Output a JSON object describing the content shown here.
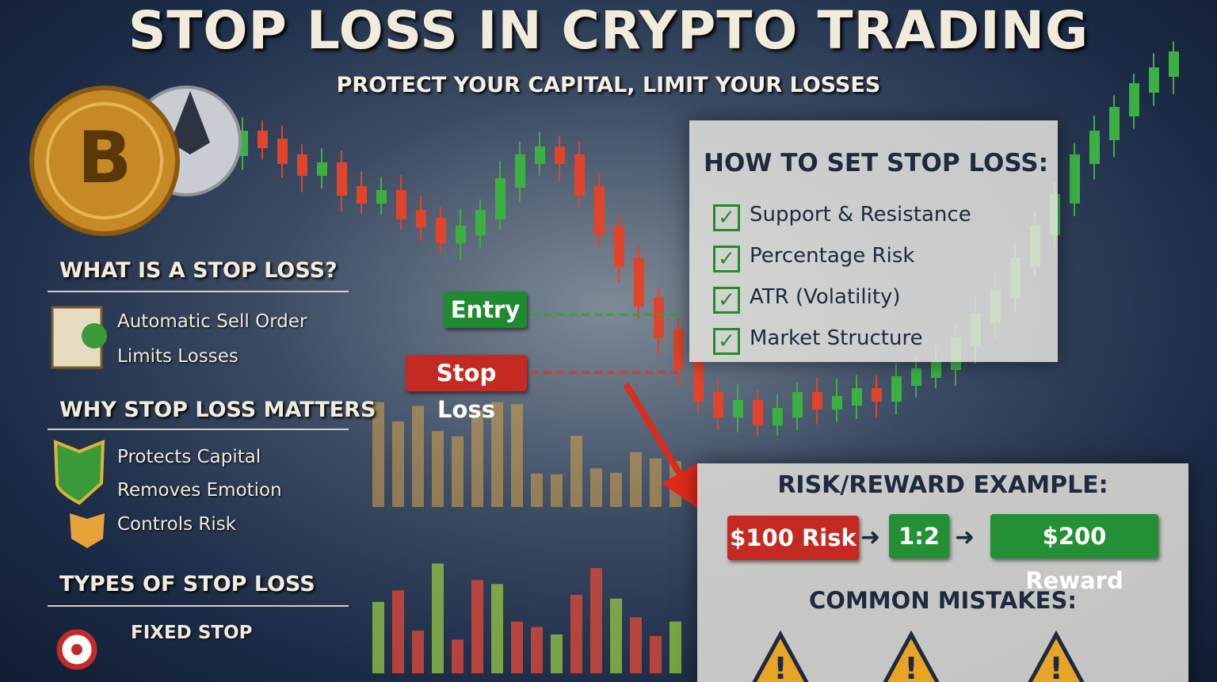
{
  "header": {
    "title": "STOP LOSS IN CRYPTO TRADING",
    "subtitle": "PROTECT YOUR CAPITAL, LIMIT YOUR LOSSES"
  },
  "what_is": {
    "title": "WHAT IS A STOP LOSS?",
    "items": [
      "Automatic Sell Order",
      "Limits Losses"
    ]
  },
  "why": {
    "title": "WHY STOP LOSS MATTERS",
    "items": [
      "Protects Capital",
      "Removes Emotion",
      "Controls Risk"
    ]
  },
  "types": {
    "title": "TYPES OF STOP LOSS",
    "items": [
      "FIXED STOP"
    ]
  },
  "chart_labels": {
    "entry": "Entry",
    "stop": "Stop Loss"
  },
  "how_to": {
    "title": "HOW TO SET STOP LOSS:",
    "items": [
      "Support & Resistance",
      "Percentage Risk",
      "ATR (Volatility)",
      "Market Structure"
    ]
  },
  "risk_reward": {
    "title": "RISK/REWARD EXAMPLE:",
    "risk": "$100 Risk",
    "ratio": "1:2",
    "reward": "$200 Reward"
  },
  "mistakes": {
    "title": "COMMON MISTAKES:"
  }
}
